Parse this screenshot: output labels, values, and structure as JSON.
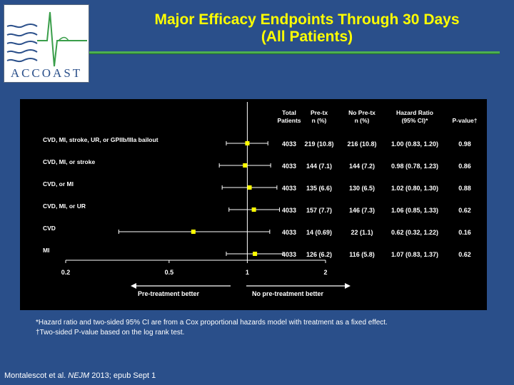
{
  "title": {
    "line1": "Major Efficacy Endpoints Through 30 Days",
    "line2": "(All Patients)"
  },
  "logo": {
    "text": "ACCOAST"
  },
  "table_headers": {
    "total_patients": [
      "Total",
      "Patients"
    ],
    "pre_tx": [
      "Pre-tx",
      "n (%)"
    ],
    "no_pre_tx": [
      "No Pre-tx",
      "n (%)"
    ],
    "hazard_ratio": [
      "Hazard Ratio",
      "(95% CI)*"
    ],
    "p_value": "P-value†"
  },
  "chart_data": {
    "type": "forest",
    "x_scale": "log",
    "xlim": [
      0.2,
      2
    ],
    "x_ticks": [
      "0.2",
      "0.5",
      "1",
      "2"
    ],
    "x_tick_values": [
      0.2,
      0.5,
      1,
      2
    ],
    "reference_line": 1,
    "left_direction_label": "Pre-treatment better",
    "right_direction_label": "No pre-treatment better",
    "marker_color": "#ffff00",
    "rows": [
      {
        "label": "CVD, MI, stroke, UR, or GPIIb/IIIa bailout",
        "total": "4033",
        "pre_tx": "219 (10.8)",
        "no_pre_tx": "216 (10.8)",
        "hr_text": "1.00 (0.83, 1.20)",
        "p": "0.98",
        "hr": 1.0,
        "lo": 0.83,
        "hi": 1.2
      },
      {
        "label": "CVD, MI, or stroke",
        "total": "4033",
        "pre_tx": "144 (7.1)",
        "no_pre_tx": "144 (7.2)",
        "hr_text": "0.98 (0.78, 1.23)",
        "p": "0.86",
        "hr": 0.98,
        "lo": 0.78,
        "hi": 1.23
      },
      {
        "label": "CVD, or MI",
        "total": "4033",
        "pre_tx": "135 (6.6)",
        "no_pre_tx": "130 (6.5)",
        "hr_text": "1.02 (0.80, 1.30)",
        "p": "0.88",
        "hr": 1.02,
        "lo": 0.8,
        "hi": 1.3
      },
      {
        "label": "CVD, MI, or UR",
        "total": "4033",
        "pre_tx": "157 (7.7)",
        "no_pre_tx": "146 (7.3)",
        "hr_text": "1.06 (0.85, 1.33)",
        "p": "0.62",
        "hr": 1.06,
        "lo": 0.85,
        "hi": 1.33
      },
      {
        "label": "CVD",
        "total": "4033",
        "pre_tx": "14 (0.69)",
        "no_pre_tx": "22 (1.1)",
        "hr_text": "0.62 (0.32, 1.22)",
        "p": "0.16",
        "hr": 0.62,
        "lo": 0.32,
        "hi": 1.22
      },
      {
        "label": "MI",
        "total": "4033",
        "pre_tx": "126 (6.2)",
        "no_pre_tx": "116 (5.8)",
        "hr_text": "1.07 (0.83, 1.37)",
        "p": "0.62",
        "hr": 1.07,
        "lo": 0.83,
        "hi": 1.37
      }
    ]
  },
  "footnotes": {
    "line1": "*Hazard ratio and two-sided 95% CI are from a Cox proportional hazards model with treatment as a fixed effect.",
    "line2": "†Two-sided P-value based on the log rank test."
  },
  "citation": {
    "authors": "Montalescot et al. ",
    "journal": "NEJM",
    "rest": " 2013; epub Sept 1"
  }
}
